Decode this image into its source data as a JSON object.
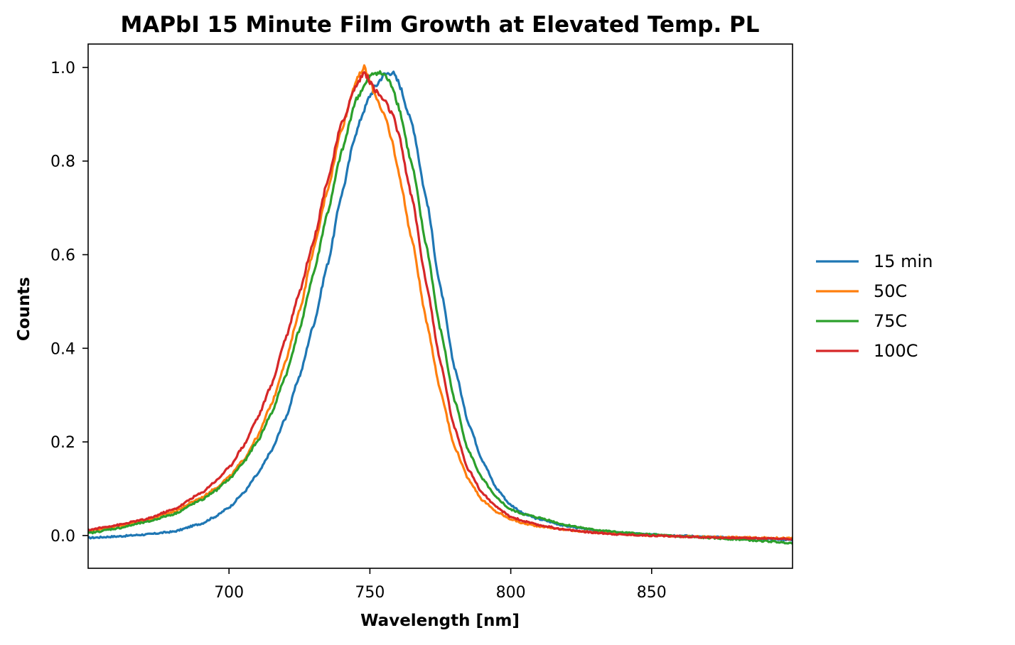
{
  "chart_data": {
    "type": "line",
    "title": "MAPbI 15 Minute Film Growth at Elevated Temp. PL",
    "xlabel": "Wavelength [nm]",
    "ylabel": "Counts",
    "xlim": [
      650,
      900
    ],
    "ylim": [
      -0.07,
      1.05
    ],
    "xticks": [
      700,
      750,
      800,
      850
    ],
    "xtick_labels": [
      "700",
      "750",
      "800",
      "850"
    ],
    "yticks": [
      0.0,
      0.2,
      0.4,
      0.6,
      0.8,
      1.0
    ],
    "ytick_labels": [
      "0.0",
      "0.2",
      "0.4",
      "0.6",
      "0.8",
      "1.0"
    ],
    "grid": false,
    "legend_placement": "right-outside",
    "x": [
      650,
      660,
      670,
      680,
      690,
      695,
      700,
      705,
      710,
      715,
      720,
      725,
      730,
      735,
      740,
      745,
      748,
      750,
      752,
      755,
      758,
      760,
      765,
      770,
      775,
      780,
      785,
      790,
      795,
      800,
      805,
      810,
      820,
      830,
      840,
      850,
      860,
      870,
      880,
      890,
      900
    ],
    "series": [
      {
        "name": "15 min",
        "color": "#1f77b4",
        "values": [
          -0.005,
          -0.002,
          0.002,
          0.008,
          0.025,
          0.04,
          0.06,
          0.09,
          0.13,
          0.18,
          0.25,
          0.34,
          0.45,
          0.58,
          0.73,
          0.86,
          0.91,
          0.94,
          0.96,
          0.985,
          0.99,
          0.97,
          0.88,
          0.72,
          0.53,
          0.36,
          0.24,
          0.16,
          0.1,
          0.065,
          0.045,
          0.035,
          0.02,
          0.01,
          0.005,
          0.002,
          0.0,
          -0.003,
          -0.005,
          -0.007,
          -0.009
        ]
      },
      {
        "name": "50C",
        "color": "#ff7f0e",
        "values": [
          0.01,
          0.02,
          0.032,
          0.05,
          0.08,
          0.1,
          0.125,
          0.16,
          0.21,
          0.28,
          0.37,
          0.48,
          0.61,
          0.74,
          0.87,
          0.97,
          1.0,
          0.97,
          0.94,
          0.9,
          0.84,
          0.78,
          0.63,
          0.46,
          0.31,
          0.19,
          0.12,
          0.075,
          0.05,
          0.035,
          0.025,
          0.02,
          0.012,
          0.006,
          0.003,
          0.0,
          -0.002,
          -0.003,
          -0.004,
          -0.005,
          -0.006
        ]
      },
      {
        "name": "75C",
        "color": "#2ca02c",
        "values": [
          0.005,
          0.015,
          0.028,
          0.045,
          0.075,
          0.095,
          0.12,
          0.155,
          0.2,
          0.26,
          0.34,
          0.44,
          0.56,
          0.69,
          0.82,
          0.93,
          0.96,
          0.98,
          0.99,
          0.985,
          0.96,
          0.92,
          0.79,
          0.62,
          0.44,
          0.29,
          0.18,
          0.12,
          0.08,
          0.055,
          0.045,
          0.038,
          0.022,
          0.012,
          0.006,
          0.002,
          -0.002,
          -0.005,
          -0.008,
          -0.012,
          -0.016
        ]
      },
      {
        "name": "100C",
        "color": "#d62728",
        "values": [
          0.012,
          0.022,
          0.034,
          0.055,
          0.09,
          0.115,
          0.145,
          0.19,
          0.25,
          0.32,
          0.42,
          0.52,
          0.63,
          0.76,
          0.88,
          0.96,
          0.99,
          0.97,
          0.95,
          0.93,
          0.9,
          0.86,
          0.72,
          0.54,
          0.37,
          0.23,
          0.14,
          0.09,
          0.06,
          0.04,
          0.03,
          0.022,
          0.012,
          0.006,
          0.002,
          0.0,
          -0.002,
          -0.004,
          -0.005,
          -0.006,
          -0.007
        ]
      }
    ]
  }
}
